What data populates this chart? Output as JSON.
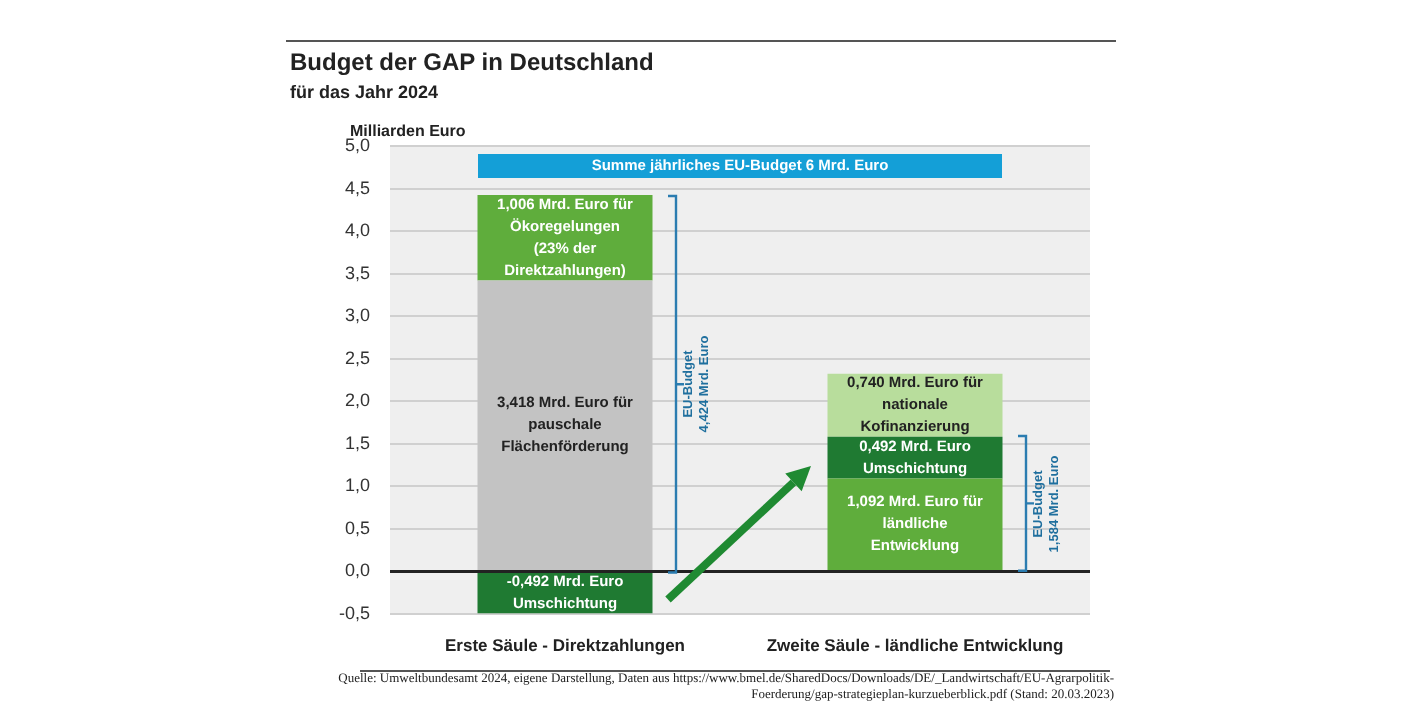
{
  "chart_data": {
    "type": "bar",
    "title": "Budget der GAP in Deutschland",
    "subtitle": "für das Jahr 2024",
    "ylabel": "Milliarden Euro",
    "categories": [
      "Erste Säule - Direktzahlungen",
      "Zweite Säule - ländliche Entwicklung"
    ],
    "stacked": true,
    "series": [
      {
        "colors": [
          "#c3c3c3",
          "#5fad3c"
        ],
        "values": [
          3.418,
          1.092
        ],
        "value_labels": [
          "3,418 Mrd. Euro für pauschale Flächenförderung",
          "1,092 Mrd. Euro für ländliche Entwicklung"
        ]
      },
      {
        "colors": [
          "#5fad3c",
          "#1f7a32"
        ],
        "values": [
          1.006,
          0.492
        ],
        "value_labels": [
          "1,006 Mrd. Euro für Ökoregelungen (23% der Direktzahlungen)",
          "0,492 Mrd. Euro Umschichtung"
        ]
      },
      {
        "colors": [
          "#1f7a32",
          "#b8dd9c"
        ],
        "values": [
          -0.492,
          0.74
        ],
        "value_labels": [
          "-0,492 Mrd. Euro Umschichtung",
          "0,740 Mrd. Euro für nationale Kofinanzierung"
        ]
      }
    ],
    "ylim": [
      -0.5,
      5.0
    ],
    "yticks": [
      {
        "value": -0.5,
        "label": "-0,5"
      },
      {
        "value": 0,
        "label": "0,0"
      },
      {
        "value": 0.5,
        "label": "0,5"
      },
      {
        "value": 1,
        "label": "1,0"
      },
      {
        "value": 1.5,
        "label": "1,5"
      },
      {
        "value": 2,
        "label": "2,0"
      },
      {
        "value": 2.5,
        "label": "2,5"
      },
      {
        "value": 3,
        "label": "3,0"
      },
      {
        "value": 3.5,
        "label": "3,5"
      },
      {
        "value": 4,
        "label": "4,0"
      },
      {
        "value": 4.5,
        "label": "4,5"
      },
      {
        "value": 5,
        "label": "5,0"
      }
    ],
    "grid": "y",
    "legend": false,
    "annotations": [
      "Summe jährliches EU-Budget 6 Mrd. Euro",
      "EU-Budget 4,424 Mrd. Euro",
      "EU-Budget 1,584 Mrd. Euro",
      "Quelle: Umweltbundesamt 2024, eigene Darstellung, Daten aus https://www.bmel.de/SharedDocs/Downloads/DE/_Landwirtschaft/EU-Agrarpolitik-Foerderung/gap-strategieplan-kurzueberblick.pdf (Stand: 20.03.2023)"
    ]
  }
}
